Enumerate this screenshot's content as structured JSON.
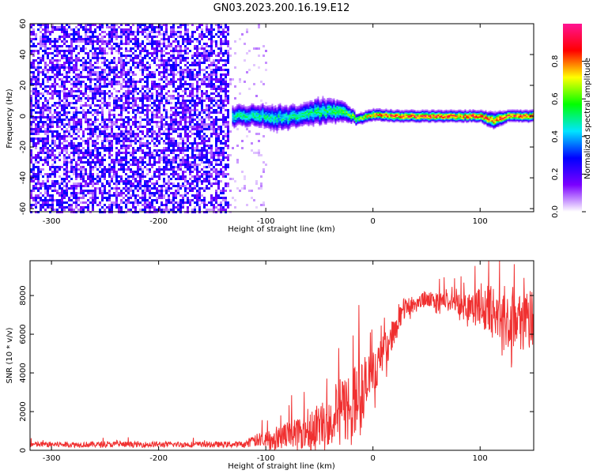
{
  "title": "GN03.2023.200.16.19.E12",
  "chart_data": [
    {
      "type": "heatmap",
      "xlabel": "Height of straight line (km)",
      "ylabel": "Frequency (Hz)",
      "xlim": [
        -320,
        150
      ],
      "ylim": [
        -62,
        60
      ],
      "x_ticks": [
        -300,
        -200,
        -100,
        0,
        100
      ],
      "y_ticks": [
        -60,
        -40,
        -20,
        0,
        20,
        40,
        60
      ],
      "colorbar": {
        "label": "Normalized spectral amplitude",
        "range": [
          0,
          1
        ],
        "ticks": [
          "0.0",
          "0.2",
          "0.4",
          "0.6",
          "0.8"
        ],
        "colors": [
          "#ffffff",
          "#7b00ff",
          "#0000ff",
          "#00e5ff",
          "#00ff00",
          "#ffff00",
          "#ff0000",
          "#ff1493"
        ]
      },
      "regions": [
        {
          "x": [
            -320,
            -135
          ],
          "freq_range": [
            -62,
            60
          ],
          "description": "broadband noise",
          "amplitude": [
            0.05,
            0.3
          ]
        },
        {
          "x": [
            -135,
            -100
          ],
          "freq_range": [
            -62,
            60
          ],
          "description": "sparse noise",
          "amplitude": [
            0.0,
            0.1
          ]
        }
      ],
      "ridge": [
        {
          "x": -133,
          "freq": 0,
          "width": 4,
          "amplitude": 0.45
        },
        {
          "x": -110,
          "freq": 1,
          "width": 4,
          "amplitude": 0.5
        },
        {
          "x": -90,
          "freq": -1,
          "width": 5,
          "amplitude": 0.45
        },
        {
          "x": -70,
          "freq": 0,
          "width": 4,
          "amplitude": 0.5
        },
        {
          "x": -50,
          "freq": 3,
          "width": 5,
          "amplitude": 0.5
        },
        {
          "x": -30,
          "freq": 3,
          "width": 4,
          "amplitude": 0.55
        },
        {
          "x": -15,
          "freq": -2,
          "width": 2,
          "amplitude": 0.6
        },
        {
          "x": 0,
          "freq": 1,
          "width": 2,
          "amplitude": 0.8
        },
        {
          "x": 20,
          "freq": 0,
          "width": 2,
          "amplitude": 0.85
        },
        {
          "x": 60,
          "freq": 0,
          "width": 2,
          "amplitude": 0.85
        },
        {
          "x": 100,
          "freq": 0,
          "width": 2,
          "amplitude": 0.85
        },
        {
          "x": 112,
          "freq": -3,
          "width": 3,
          "amplitude": 0.8
        },
        {
          "x": 125,
          "freq": 0,
          "width": 2,
          "amplitude": 0.85
        },
        {
          "x": 150,
          "freq": 0,
          "width": 2,
          "amplitude": 0.85
        }
      ]
    },
    {
      "type": "line",
      "xlabel": "Height of straight line (km)",
      "ylabel": "SNR (10 * v/v)",
      "xlim": [
        -320,
        150
      ],
      "ylim": [
        0,
        9800
      ],
      "x_ticks": [
        -300,
        -200,
        -100,
        0,
        100
      ],
      "y_ticks": [
        0,
        2000,
        4000,
        6000,
        8000
      ],
      "color": "#f03030",
      "series_envelope": [
        {
          "x": -320,
          "mean": 300,
          "spread": 150
        },
        {
          "x": -120,
          "mean": 300,
          "spread": 150
        },
        {
          "x": -110,
          "mean": 500,
          "spread": 400
        },
        {
          "x": -80,
          "mean": 800,
          "spread": 900
        },
        {
          "x": -50,
          "mean": 1300,
          "spread": 1400
        },
        {
          "x": -30,
          "mean": 2000,
          "spread": 2200
        },
        {
          "x": -10,
          "mean": 2800,
          "spread": 2600
        },
        {
          "x": 0,
          "mean": 4000,
          "spread": 1500
        },
        {
          "x": 10,
          "mean": 5000,
          "spread": 1200
        },
        {
          "x": 20,
          "mean": 6200,
          "spread": 900
        },
        {
          "x": 30,
          "mean": 7400,
          "spread": 700
        },
        {
          "x": 50,
          "mean": 7800,
          "spread": 500
        },
        {
          "x": 80,
          "mean": 7600,
          "spread": 700
        },
        {
          "x": 100,
          "mean": 7400,
          "spread": 1300
        },
        {
          "x": 120,
          "mean": 7000,
          "spread": 2000
        },
        {
          "x": 150,
          "mean": 6600,
          "spread": 2000
        }
      ]
    }
  ]
}
